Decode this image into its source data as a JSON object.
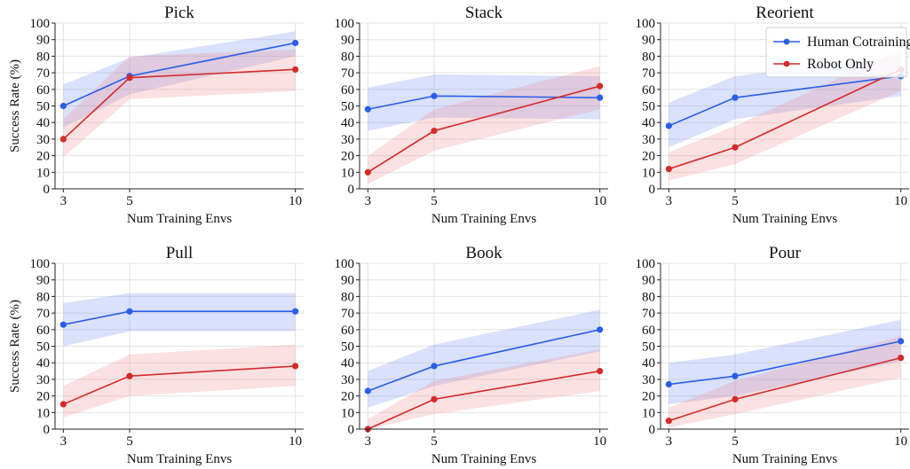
{
  "colors": {
    "human": "#2a5ee8",
    "robot": "#d42a2a",
    "human_band": "#6b8cf5",
    "robot_band": "#f08a8a"
  },
  "chart_data": [
    {
      "type": "line",
      "title": "Pick",
      "xlabel": "Num Training Envs",
      "ylabel": "Success Rate (%)",
      "x": [
        3,
        5,
        10
      ],
      "xticks": [
        "3",
        "5",
        "10"
      ],
      "xlim": [
        2.75,
        10.25
      ],
      "ylim": [
        0,
        100
      ],
      "yticks": [
        "0",
        "10",
        "20",
        "30",
        "40",
        "50",
        "60",
        "70",
        "80",
        "90",
        "100"
      ],
      "grid": true,
      "series": [
        {
          "name": "Human Cotraining",
          "values": [
            50,
            68,
            88
          ],
          "lower": [
            37,
            57,
            80
          ],
          "upper": [
            63,
            79,
            95
          ]
        },
        {
          "name": "Robot Only",
          "values": [
            30,
            67,
            72
          ],
          "lower": [
            19,
            54,
            59
          ],
          "upper": [
            42,
            80,
            84
          ]
        }
      ]
    },
    {
      "type": "line",
      "title": "Stack",
      "xlabel": "Num Training Envs",
      "ylabel": "",
      "x": [
        3,
        5,
        10
      ],
      "xticks": [
        "3",
        "5",
        "10"
      ],
      "xlim": [
        2.75,
        10.25
      ],
      "ylim": [
        0,
        100
      ],
      "yticks": [
        "0",
        "10",
        "20",
        "30",
        "40",
        "50",
        "60",
        "70",
        "80",
        "90",
        "100"
      ],
      "grid": true,
      "series": [
        {
          "name": "Human Cotraining",
          "values": [
            48,
            56,
            55
          ],
          "lower": [
            35,
            43,
            42
          ],
          "upper": [
            61,
            69,
            68
          ]
        },
        {
          "name": "Robot Only",
          "values": [
            10,
            35,
            62
          ],
          "lower": [
            3,
            23,
            48
          ],
          "upper": [
            20,
            48,
            74
          ]
        }
      ]
    },
    {
      "type": "line",
      "title": "Reorient",
      "xlabel": "Num Training Envs",
      "ylabel": "",
      "x": [
        3,
        5,
        10
      ],
      "xticks": [
        "3",
        "5",
        "10"
      ],
      "xlim": [
        2.75,
        10.25
      ],
      "ylim": [
        0,
        100
      ],
      "yticks": [
        "0",
        "10",
        "20",
        "30",
        "40",
        "50",
        "60",
        "70",
        "80",
        "90",
        "100"
      ],
      "grid": true,
      "legend": {
        "placement": "top-right",
        "entries": [
          "Human Cotraining",
          "Robot Only"
        ]
      },
      "series": [
        {
          "name": "Human Cotraining",
          "values": [
            38,
            55,
            68
          ],
          "lower": [
            25,
            42,
            56
          ],
          "upper": [
            52,
            68,
            80
          ]
        },
        {
          "name": "Robot Only",
          "values": [
            12,
            25,
            72
          ],
          "lower": [
            5,
            15,
            59
          ],
          "upper": [
            22,
            38,
            84
          ]
        }
      ]
    },
    {
      "type": "line",
      "title": "Pull",
      "xlabel": "Num Training Envs",
      "ylabel": "Success Rate (%)",
      "x": [
        3,
        5,
        10
      ],
      "xticks": [
        "3",
        "5",
        "10"
      ],
      "xlim": [
        2.75,
        10.25
      ],
      "ylim": [
        0,
        100
      ],
      "yticks": [
        "0",
        "10",
        "20",
        "30",
        "40",
        "50",
        "60",
        "70",
        "80",
        "90",
        "100"
      ],
      "grid": true,
      "series": [
        {
          "name": "Human Cotraining",
          "values": [
            63,
            71,
            71
          ],
          "lower": [
            50,
            59,
            59
          ],
          "upper": [
            76,
            82,
            82
          ]
        },
        {
          "name": "Robot Only",
          "values": [
            15,
            32,
            38
          ],
          "lower": [
            7,
            20,
            26
          ],
          "upper": [
            26,
            45,
            51
          ]
        }
      ]
    },
    {
      "type": "line",
      "title": "Book",
      "xlabel": "Num Training Envs",
      "ylabel": "",
      "x": [
        3,
        5,
        10
      ],
      "xticks": [
        "3",
        "5",
        "10"
      ],
      "xlim": [
        2.75,
        10.25
      ],
      "ylim": [
        0,
        100
      ],
      "yticks": [
        "0",
        "10",
        "20",
        "30",
        "40",
        "50",
        "60",
        "70",
        "80",
        "90",
        "100"
      ],
      "grid": true,
      "series": [
        {
          "name": "Human Cotraining",
          "values": [
            23,
            38,
            60
          ],
          "lower": [
            13,
            26,
            47
          ],
          "upper": [
            35,
            51,
            72
          ]
        },
        {
          "name": "Robot Only",
          "values": [
            0,
            18,
            35
          ],
          "lower": [
            0,
            9,
            23
          ],
          "upper": [
            6,
            29,
            48
          ]
        }
      ]
    },
    {
      "type": "line",
      "title": "Pour",
      "xlabel": "Num Training Envs",
      "ylabel": "",
      "x": [
        3,
        5,
        10
      ],
      "xticks": [
        "3",
        "5",
        "10"
      ],
      "xlim": [
        2.75,
        10.25
      ],
      "ylim": [
        0,
        100
      ],
      "yticks": [
        "0",
        "10",
        "20",
        "30",
        "40",
        "50",
        "60",
        "70",
        "80",
        "90",
        "100"
      ],
      "grid": true,
      "series": [
        {
          "name": "Human Cotraining",
          "values": [
            27,
            32,
            53
          ],
          "lower": [
            15,
            20,
            41
          ],
          "upper": [
            40,
            45,
            66
          ]
        },
        {
          "name": "Robot Only",
          "values": [
            5,
            18,
            43
          ],
          "lower": [
            1,
            9,
            31
          ],
          "upper": [
            13,
            29,
            56
          ]
        }
      ]
    }
  ]
}
